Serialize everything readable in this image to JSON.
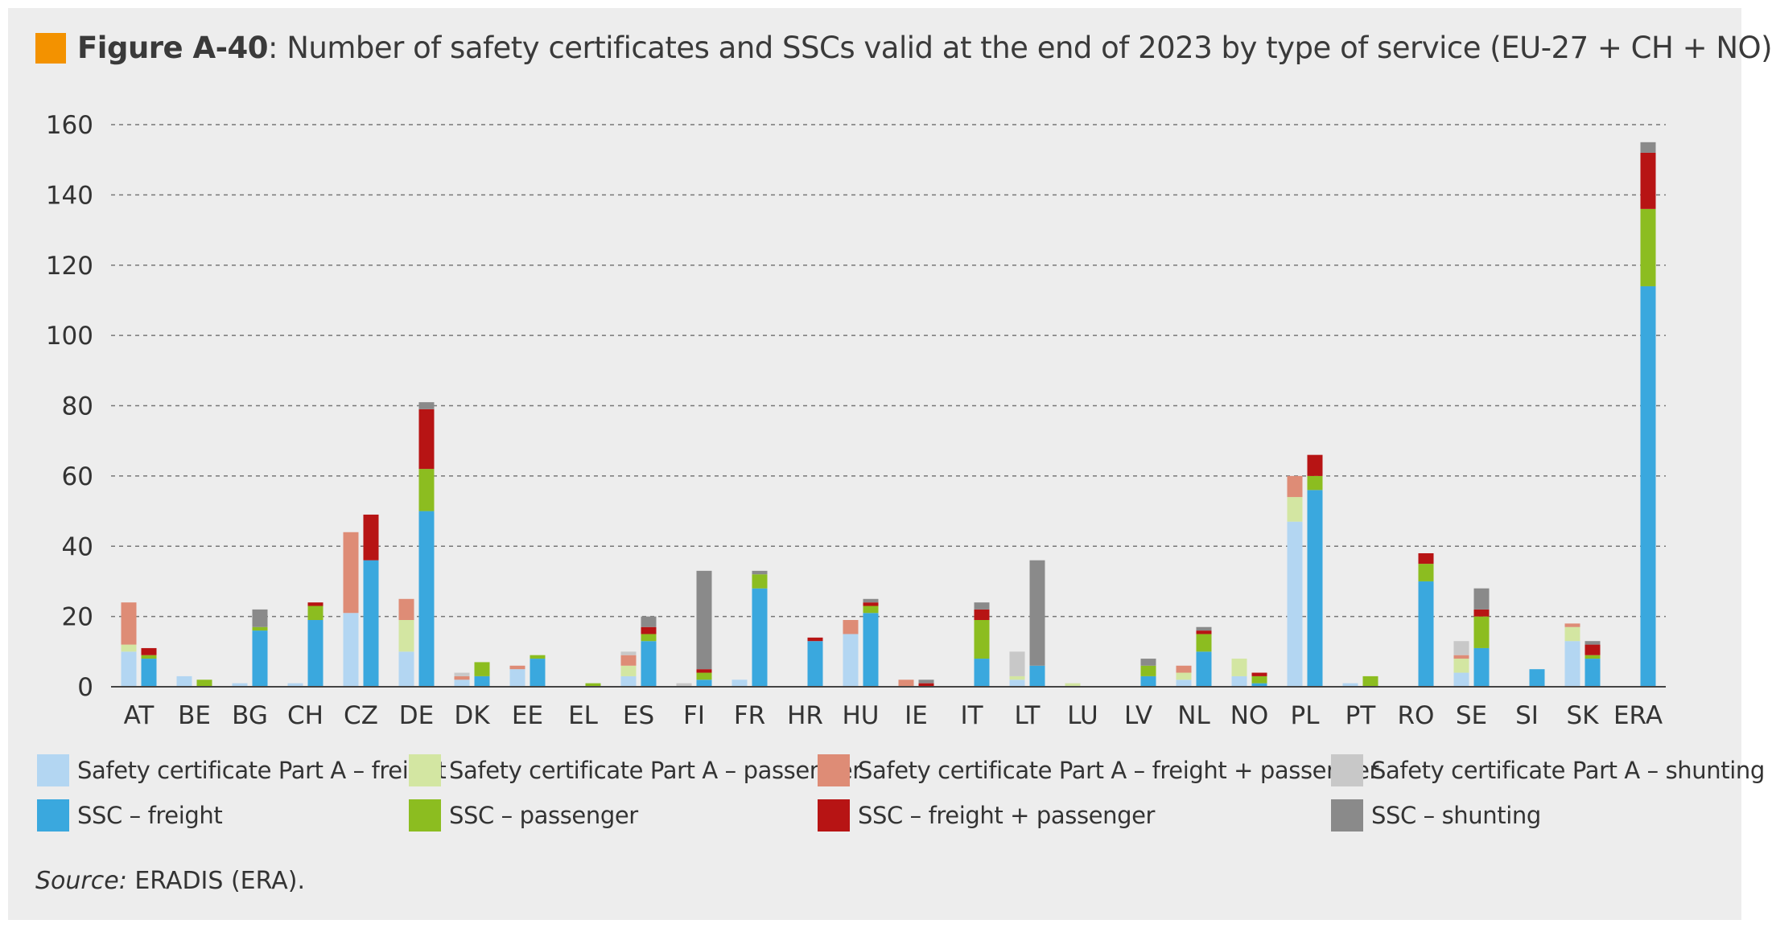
{
  "figure": {
    "label": "Figure A-40",
    "title_rest": ": Number of safety certificates and SSCs valid at the end of 2023 by type of service (EU-27 + CH + NO)",
    "accent_color": "#f39200"
  },
  "source": {
    "label": "Source:",
    "text": " ERADIS (ERA)."
  },
  "chart_data": {
    "type": "bar",
    "stacked": true,
    "grouped_pairs": true,
    "title": "Number of safety certificates and SSCs valid at the end of 2023 by type of service (EU-27 + CH + NO)",
    "xlabel": "",
    "ylabel": "",
    "ylim": [
      0,
      160
    ],
    "yticks": [
      0,
      20,
      40,
      60,
      80,
      100,
      120,
      140,
      160
    ],
    "grid": "horizontal-dashed",
    "legend_position": "bottom",
    "categories": [
      "AT",
      "BE",
      "BG",
      "CH",
      "CZ",
      "DE",
      "DK",
      "EE",
      "EL",
      "ES",
      "FI",
      "FR",
      "HR",
      "HU",
      "IE",
      "IT",
      "LT",
      "LU",
      "LV",
      "NL",
      "NO",
      "PL",
      "PT",
      "RO",
      "SE",
      "SI",
      "SK",
      "ERA"
    ],
    "groups": [
      {
        "name": "Safety certificate Part A",
        "series": [
          {
            "name": "Safety certificate Part A – freight",
            "color": "#b3d6f2",
            "values": [
              10,
              3,
              1,
              1,
              21,
              10,
              2,
              5,
              0,
              3,
              0,
              2,
              0,
              15,
              0,
              0,
              2,
              0,
              0,
              2,
              3,
              47,
              1,
              0,
              4,
              0,
              13,
              0
            ]
          },
          {
            "name": "Safety certificate Part A – passenger",
            "color": "#d3e6a2",
            "values": [
              2,
              0,
              0,
              0,
              0,
              9,
              0,
              0,
              0,
              3,
              0,
              0,
              0,
              0,
              0,
              0,
              1,
              1,
              0,
              2,
              5,
              7,
              0,
              0,
              4,
              0,
              4,
              0
            ]
          },
          {
            "name": "Safety certificate Part A – freight + passenger",
            "color": "#de8c76",
            "values": [
              12,
              0,
              0,
              0,
              23,
              6,
              1,
              1,
              0,
              3,
              0,
              0,
              0,
              4,
              2,
              0,
              0,
              0,
              0,
              2,
              0,
              6,
              0,
              0,
              1,
              0,
              1,
              0
            ]
          },
          {
            "name": "Safety certificate Part A – shunting",
            "color": "#c8c8c8",
            "values": [
              0,
              0,
              0,
              0,
              0,
              0,
              1,
              0,
              0,
              1,
              1,
              0,
              0,
              0,
              0,
              0,
              7,
              0,
              0,
              0,
              0,
              0,
              0,
              0,
              4,
              0,
              0,
              0
            ]
          }
        ]
      },
      {
        "name": "SSC",
        "series": [
          {
            "name": "SSC – freight",
            "color": "#3aa8de",
            "values": [
              8,
              0,
              16,
              19,
              36,
              50,
              3,
              8,
              0,
              13,
              2,
              28,
              13,
              21,
              0,
              8,
              6,
              0,
              3,
              10,
              1,
              56,
              0,
              30,
              11,
              5,
              8,
              114
            ]
          },
          {
            "name": "SSC  – passenger",
            "color": "#8cbd20",
            "values": [
              1,
              2,
              1,
              4,
              0,
              12,
              4,
              1,
              1,
              2,
              2,
              4,
              0,
              2,
              0,
              11,
              0,
              0,
              3,
              5,
              2,
              4,
              3,
              5,
              9,
              0,
              1,
              22
            ]
          },
          {
            "name": "SSC – freight + passenger",
            "color": "#b71414",
            "values": [
              2,
              0,
              0,
              1,
              13,
              17,
              0,
              0,
              0,
              2,
              1,
              0,
              1,
              1,
              1,
              3,
              0,
              0,
              0,
              1,
              1,
              6,
              0,
              3,
              2,
              0,
              3,
              16
            ]
          },
          {
            "name": "SSC – shunting",
            "color": "#8a8a8a",
            "values": [
              0,
              0,
              5,
              0,
              0,
              2,
              0,
              0,
              0,
              3,
              28,
              1,
              0,
              1,
              1,
              2,
              30,
              0,
              2,
              1,
              0,
              0,
              0,
              0,
              6,
              0,
              1,
              3
            ]
          }
        ]
      }
    ]
  }
}
